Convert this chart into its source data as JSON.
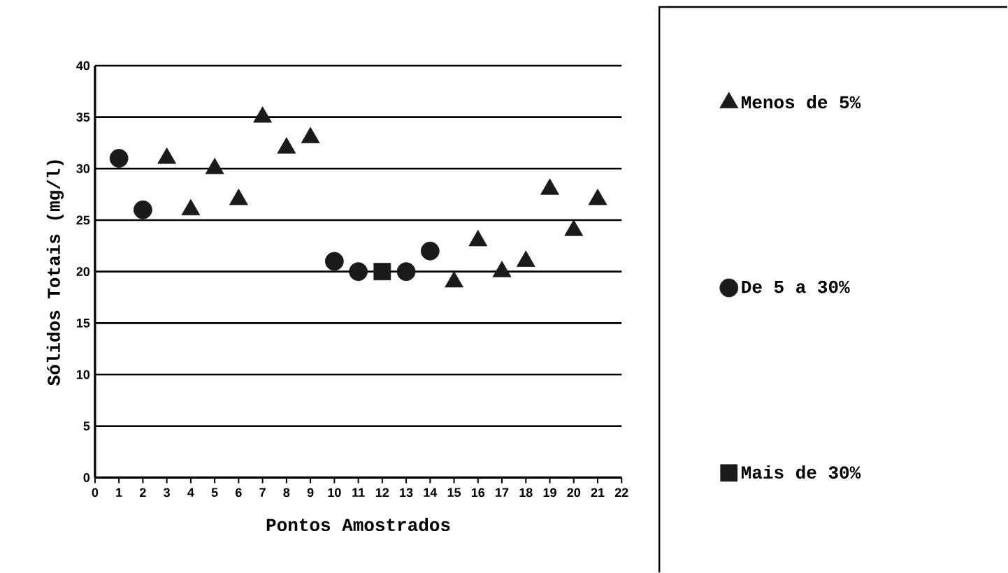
{
  "chart_data": {
    "type": "scatter",
    "xlabel": "Pontos Amostrados",
    "ylabel": "Sólidos Totais (mg/l)",
    "series": [
      {
        "name": "Menos de 5%",
        "color": "#1a1a1a",
        "marker": "triangle",
        "x": [
          3,
          4,
          5,
          6,
          7,
          8,
          9,
          15,
          16,
          17,
          18,
          19,
          20,
          21
        ],
        "values": [
          31,
          26,
          30,
          27,
          35,
          32,
          33,
          19,
          23,
          20,
          21,
          28,
          24,
          27
        ]
      },
      {
        "name": "De 5 a 30%",
        "color": "#1a1a1a",
        "marker": "circle",
        "x": [
          1,
          2,
          10,
          11,
          13,
          14
        ],
        "values": [
          31,
          26,
          21,
          20,
          20,
          22
        ]
      },
      {
        "name": "Mais de 30%",
        "color": "#1a1a1a",
        "marker": "square",
        "x": [
          12
        ],
        "values": [
          20
        ]
      }
    ],
    "xlim": [
      0,
      22
    ],
    "xticks": [
      0,
      1,
      2,
      3,
      4,
      5,
      6,
      7,
      8,
      9,
      10,
      11,
      12,
      13,
      14,
      15,
      16,
      17,
      18,
      19,
      20,
      21,
      22
    ],
    "ylim": [
      0,
      40
    ],
    "yticks": [
      0,
      5,
      10,
      15,
      20,
      25,
      30,
      35,
      40
    ],
    "grid": "y",
    "legend": "right"
  }
}
